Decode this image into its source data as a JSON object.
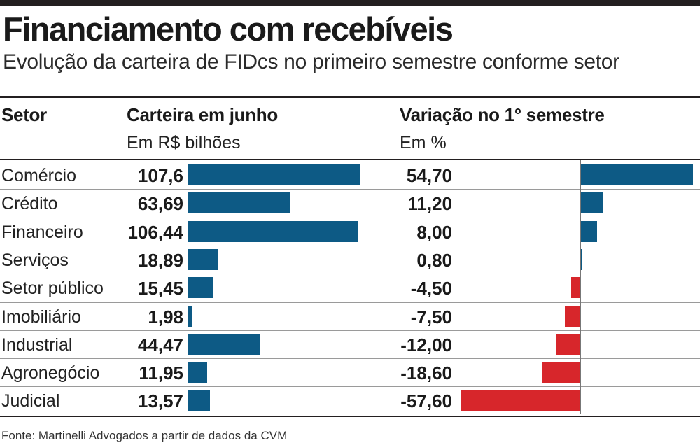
{
  "title": "Financiamento com recebíveis",
  "subtitle": "Evolução da carteira de FIDcs no primeiro semestre conforme setor",
  "headers": {
    "sector": "Setor",
    "portfolio": "Carteira em junho",
    "portfolio_unit": "Em R$ bilhões",
    "change": "Variação no 1° semestre",
    "change_unit": "Em %"
  },
  "source": "Fonte: Martinelli Advogados a partir de dados da CVM",
  "colors": {
    "positive": "#0d5a85",
    "negative": "#d7262b"
  },
  "chart_data": [
    {
      "type": "bar",
      "title": "Carteira em junho",
      "unit": "Em R$ bilhões",
      "categories": [
        "Comércio",
        "Crédito",
        "Financeiro",
        "Serviços",
        "Setor público",
        "Imobiliário",
        "Industrial",
        "Agronegócio",
        "Judicial"
      ],
      "values": [
        107.6,
        63.69,
        106.44,
        18.89,
        15.45,
        1.98,
        44.47,
        11.95,
        13.57
      ],
      "labels": [
        "107,6",
        "63,69",
        "106,44",
        "18,89",
        "15,45",
        "1,98",
        "44,47",
        "11,95",
        "13,57"
      ]
    },
    {
      "type": "bar",
      "title": "Variação no 1° semestre",
      "unit": "Em %",
      "categories": [
        "Comércio",
        "Crédito",
        "Financeiro",
        "Serviços",
        "Setor público",
        "Imobiliário",
        "Industrial",
        "Agronegócio",
        "Judicial"
      ],
      "values": [
        54.7,
        11.2,
        8.0,
        0.8,
        -4.5,
        -7.5,
        -12.0,
        -18.6,
        -57.6
      ],
      "labels": [
        "54,70",
        "11,20",
        "8,00",
        "0,80",
        "-4,50",
        "-7,50",
        "-12,00",
        "-18,60",
        "-57,60"
      ]
    }
  ]
}
